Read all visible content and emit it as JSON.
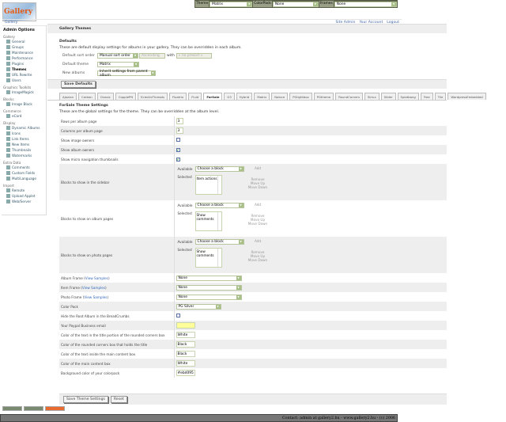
{
  "topbar": {
    "theme_label": "Theme",
    "theme_value": "Matrix",
    "colorpack_label": "ColorPack",
    "colorpack_value": "None",
    "frames_label": "Frames",
    "frames_value": "None"
  },
  "logo_text": "Gallery",
  "breadcrumb": {
    "root": "Gallery",
    "links": [
      "Site Admin",
      "Your Account",
      "Logout"
    ]
  },
  "sidebar": {
    "title": "Admin Options",
    "groups": [
      {
        "name": "Gallery",
        "items": [
          "General",
          "Groups",
          "Maintenance",
          "Performance",
          "Plugins",
          "Themes",
          "URL Rewrite",
          "Users"
        ]
      },
      {
        "name": "Graphics Toolkits",
        "items": [
          "ImageMagick"
        ]
      },
      {
        "name": "Blocks",
        "items": [
          "Image Block"
        ]
      },
      {
        "name": "Commerce",
        "items": [
          "eCard"
        ]
      },
      {
        "name": "Display",
        "items": [
          "Dynamic Albums",
          "Icons",
          "Link Items",
          "New Items",
          "Thumbnails",
          "Watermarks"
        ]
      },
      {
        "name": "Extra Data",
        "items": [
          "Comments",
          "Custom Fields",
          "MultiLanguage"
        ]
      },
      {
        "name": "Import",
        "items": [
          "Remote",
          "Upload Applet",
          "Web/Server"
        ]
      }
    ],
    "current": "Themes"
  },
  "main": {
    "title": "Gallery Themes",
    "defaults_heading": "Defaults",
    "defaults_desc": "These are default display settings for albums in your gallery. They can be overridden in each album.",
    "sort_label": "Default sort order",
    "sort_value": "Manual sort order",
    "sort_dir": "Ascending",
    "with_label": "with",
    "preset": "« no presort »",
    "theme_label": "Default theme",
    "theme_value": "Matrix",
    "new_label": "New albums",
    "new_value": "Inherit settings from parent album",
    "save_defaults": "Save Defaults",
    "tabs": [
      "Ajaxian",
      "Carbon",
      "Classic",
      "CopplePft",
      "EclecticThreads",
      "Floatrix",
      "Fluid",
      "ForSale",
      "G3",
      "Hybrid",
      "Matrix",
      "Nature",
      "PGlightbox",
      "PGtheme",
      "RoundCorners",
      "Siriux",
      "Slider",
      "Splatbang",
      "Tree",
      "Tile",
      "WordpressEmbedded"
    ],
    "active_tab": "ForSale",
    "settings_heading": "ForSale Theme Settings",
    "settings_desc": "These are the global settings for the theme. They can be overridden at the album level.",
    "rows_label": "Rows per album page",
    "rows_value": "3",
    "cols_label": "Columns per album page",
    "cols_value": "3",
    "show_owners_label": "Show image owners",
    "show_owners": false,
    "show_album_owners_label": "Show album owners",
    "show_album_owners": true,
    "micro_label": "Show micro navigation thumbnails",
    "micro": true,
    "blocks": [
      {
        "label": "Blocks to show in the sidebar",
        "selected": "Item actions"
      },
      {
        "label": "Blocks to show on album pages",
        "selected": "Show comments"
      },
      {
        "label": "Blocks to show on photo pages",
        "selected": "Show comments"
      }
    ],
    "available_label": "Available",
    "available_value": "Choose a block",
    "selected_label": "Selected",
    "add": "Add",
    "remove": "Remove",
    "move_up": "Move Up",
    "move_down": "Move Down",
    "album_frame_label": "Album Frame",
    "item_frame_label": "Item Frame",
    "photo_frame_label": "Photo Frame",
    "view_samples": "View Samples",
    "frame_value": "None",
    "colorpack_label": "Color Pack",
    "colorpack_value": "PG Silver",
    "hide_root_label": "Hide the Root Album in the BreadCrumbs",
    "hide_root": false,
    "paypal_label": "Your Paypal Business email",
    "paypal_value": "",
    "title_text_label": "Color of the text in the title portion of the rounded corners box",
    "title_text_value": "White",
    "rounded_label": "Color of the rounded corners box that holds the title",
    "rounded_value": "Black",
    "content_text_label": "Color of the text inside the main content box",
    "content_text_value": "Black",
    "content_box_label": "Color of the main content box",
    "content_box_value": "White",
    "bg_label": "Background color of your colorpack",
    "bg_value": "#ebd095",
    "save_theme": "Save Theme Settings",
    "reset": "Reset"
  },
  "footer": "Contact: admin at gallery2.hu - www.gallery2.hu - (c) 2006"
}
